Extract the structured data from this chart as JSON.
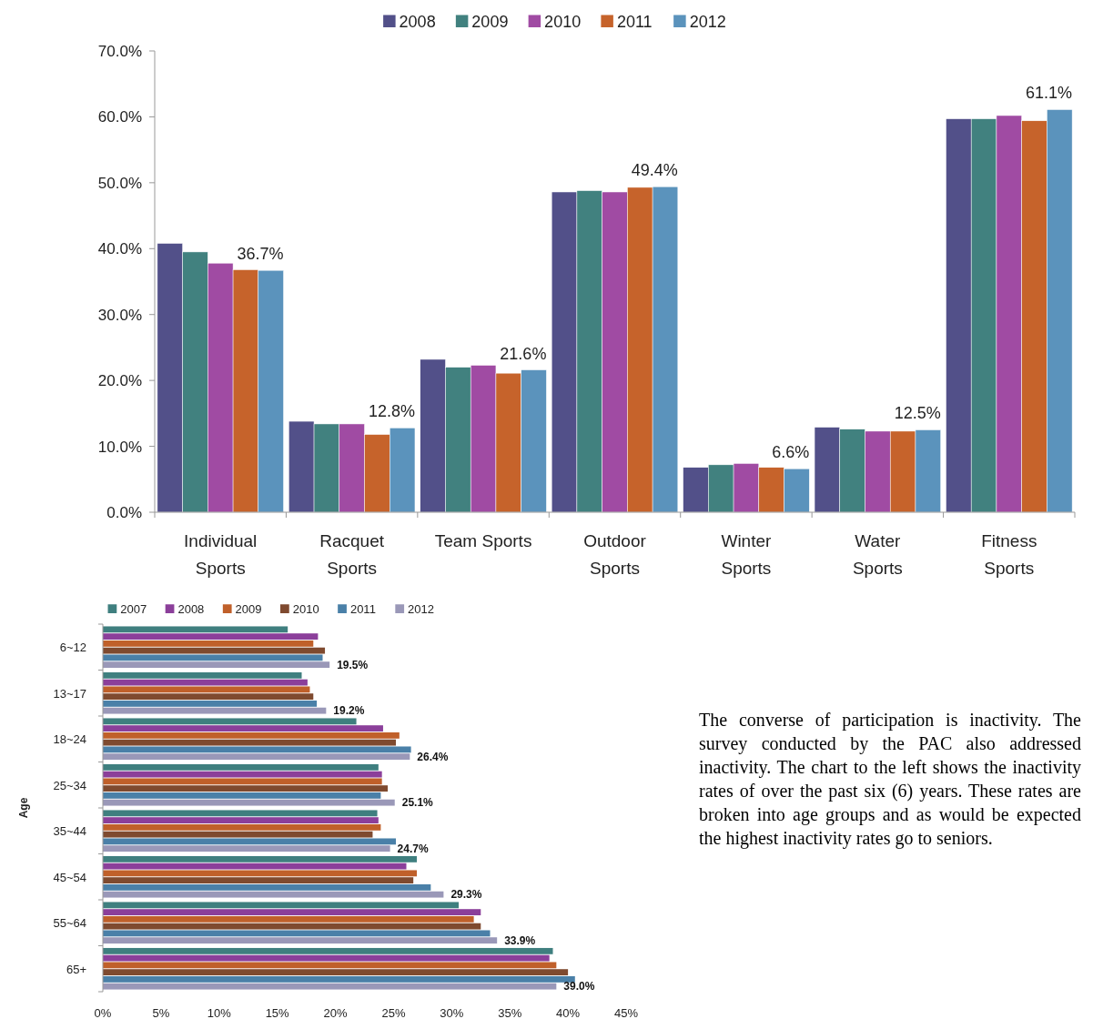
{
  "chart_data": [
    {
      "type": "bar",
      "categories": [
        "Individual Sports",
        "Racquet Sports",
        "Team Sports",
        "Outdoor Sports",
        "Winter Sports",
        "Water Sports",
        "Fitness Sports"
      ],
      "ylim": [
        0,
        70
      ],
      "yticks": [
        {
          "value": 0,
          "label": "0.0%"
        },
        {
          "value": 10,
          "label": "10.0%"
        },
        {
          "value": 20,
          "label": "20.0%"
        },
        {
          "value": 30,
          "label": "30.0%"
        },
        {
          "value": 40,
          "label": "40.0%"
        },
        {
          "value": 50,
          "label": "50.0%"
        },
        {
          "value": 60,
          "label": "60.0%"
        },
        {
          "value": 70,
          "label": "70.0%"
        }
      ],
      "legend": "top",
      "series": [
        {
          "name": "2008",
          "color": "#525089",
          "values": [
            40.8,
            13.8,
            23.2,
            48.6,
            6.8,
            12.9,
            59.7
          ]
        },
        {
          "name": "2009",
          "color": "#41817f",
          "values": [
            39.5,
            13.4,
            22.0,
            48.8,
            7.2,
            12.6,
            59.7
          ]
        },
        {
          "name": "2010",
          "color": "#a04ba3",
          "values": [
            37.8,
            13.4,
            22.3,
            48.6,
            7.4,
            12.3,
            60.2
          ]
        },
        {
          "name": "2011",
          "color": "#c6632b",
          "values": [
            36.8,
            11.8,
            21.1,
            49.3,
            6.8,
            12.3,
            59.4
          ]
        },
        {
          "name": "2012",
          "color": "#5b93bc",
          "values": [
            36.7,
            12.8,
            21.6,
            49.4,
            6.6,
            12.5,
            61.1
          ],
          "value_labels": [
            "36.7%",
            "12.8%",
            "21.6%",
            "49.4%",
            "6.6%",
            "12.5%",
            "61.1%"
          ]
        }
      ]
    },
    {
      "type": "bar",
      "orientation": "horizontal",
      "ylabel": "Age",
      "categories": [
        "6~12",
        "13~17",
        "18~24",
        "25~34",
        "35~44",
        "45~54",
        "55~64",
        "65+"
      ],
      "xlim": [
        0,
        45
      ],
      "xticks": [
        {
          "value": 0,
          "label": "0%"
        },
        {
          "value": 5,
          "label": "5%"
        },
        {
          "value": 10,
          "label": "10%"
        },
        {
          "value": 15,
          "label": "15%"
        },
        {
          "value": 20,
          "label": "20%"
        },
        {
          "value": 25,
          "label": "25%"
        },
        {
          "value": 30,
          "label": "30%"
        },
        {
          "value": 35,
          "label": "35%"
        },
        {
          "value": 40,
          "label": "40%"
        },
        {
          "value": 45,
          "label": "45%"
        }
      ],
      "legend": "top",
      "series": [
        {
          "name": "2007",
          "color": "#3f7f7f",
          "values": [
            15.9,
            17.1,
            21.8,
            23.7,
            23.6,
            27.0,
            30.6,
            38.7
          ]
        },
        {
          "name": "2008",
          "color": "#8b3f9a",
          "values": [
            18.5,
            17.6,
            24.1,
            24.0,
            23.7,
            26.1,
            32.5,
            38.4
          ]
        },
        {
          "name": "2009",
          "color": "#c0602a",
          "values": [
            18.1,
            17.8,
            25.5,
            24.0,
            23.9,
            27.0,
            31.9,
            39.0
          ]
        },
        {
          "name": "2010",
          "color": "#7f4a2f",
          "values": [
            19.1,
            18.1,
            25.2,
            24.5,
            23.2,
            26.7,
            32.5,
            40.0
          ]
        },
        {
          "name": "2011",
          "color": "#4a80a8",
          "values": [
            18.9,
            18.4,
            26.5,
            23.9,
            25.2,
            28.2,
            33.3,
            40.6
          ]
        },
        {
          "name": "2012",
          "color": "#9a98b8",
          "values": [
            19.5,
            19.2,
            26.4,
            25.1,
            24.7,
            29.3,
            33.9,
            39.0
          ],
          "value_labels": [
            "19.5%",
            "19.2%",
            "26.4%",
            "25.1%",
            "24.7%",
            "29.3%",
            "33.9%",
            "39.0%"
          ]
        }
      ]
    },
    {
      "type": "other",
      "annotations": [
        "The converse of participation is inactivity. The survey conducted by the PAC also addressed inactivity. The chart to the left shows the inactivity rates of over the past six (6) years. These rates are broken into age groups and as would be expected the highest inactivity rates go to seniors."
      ]
    }
  ]
}
